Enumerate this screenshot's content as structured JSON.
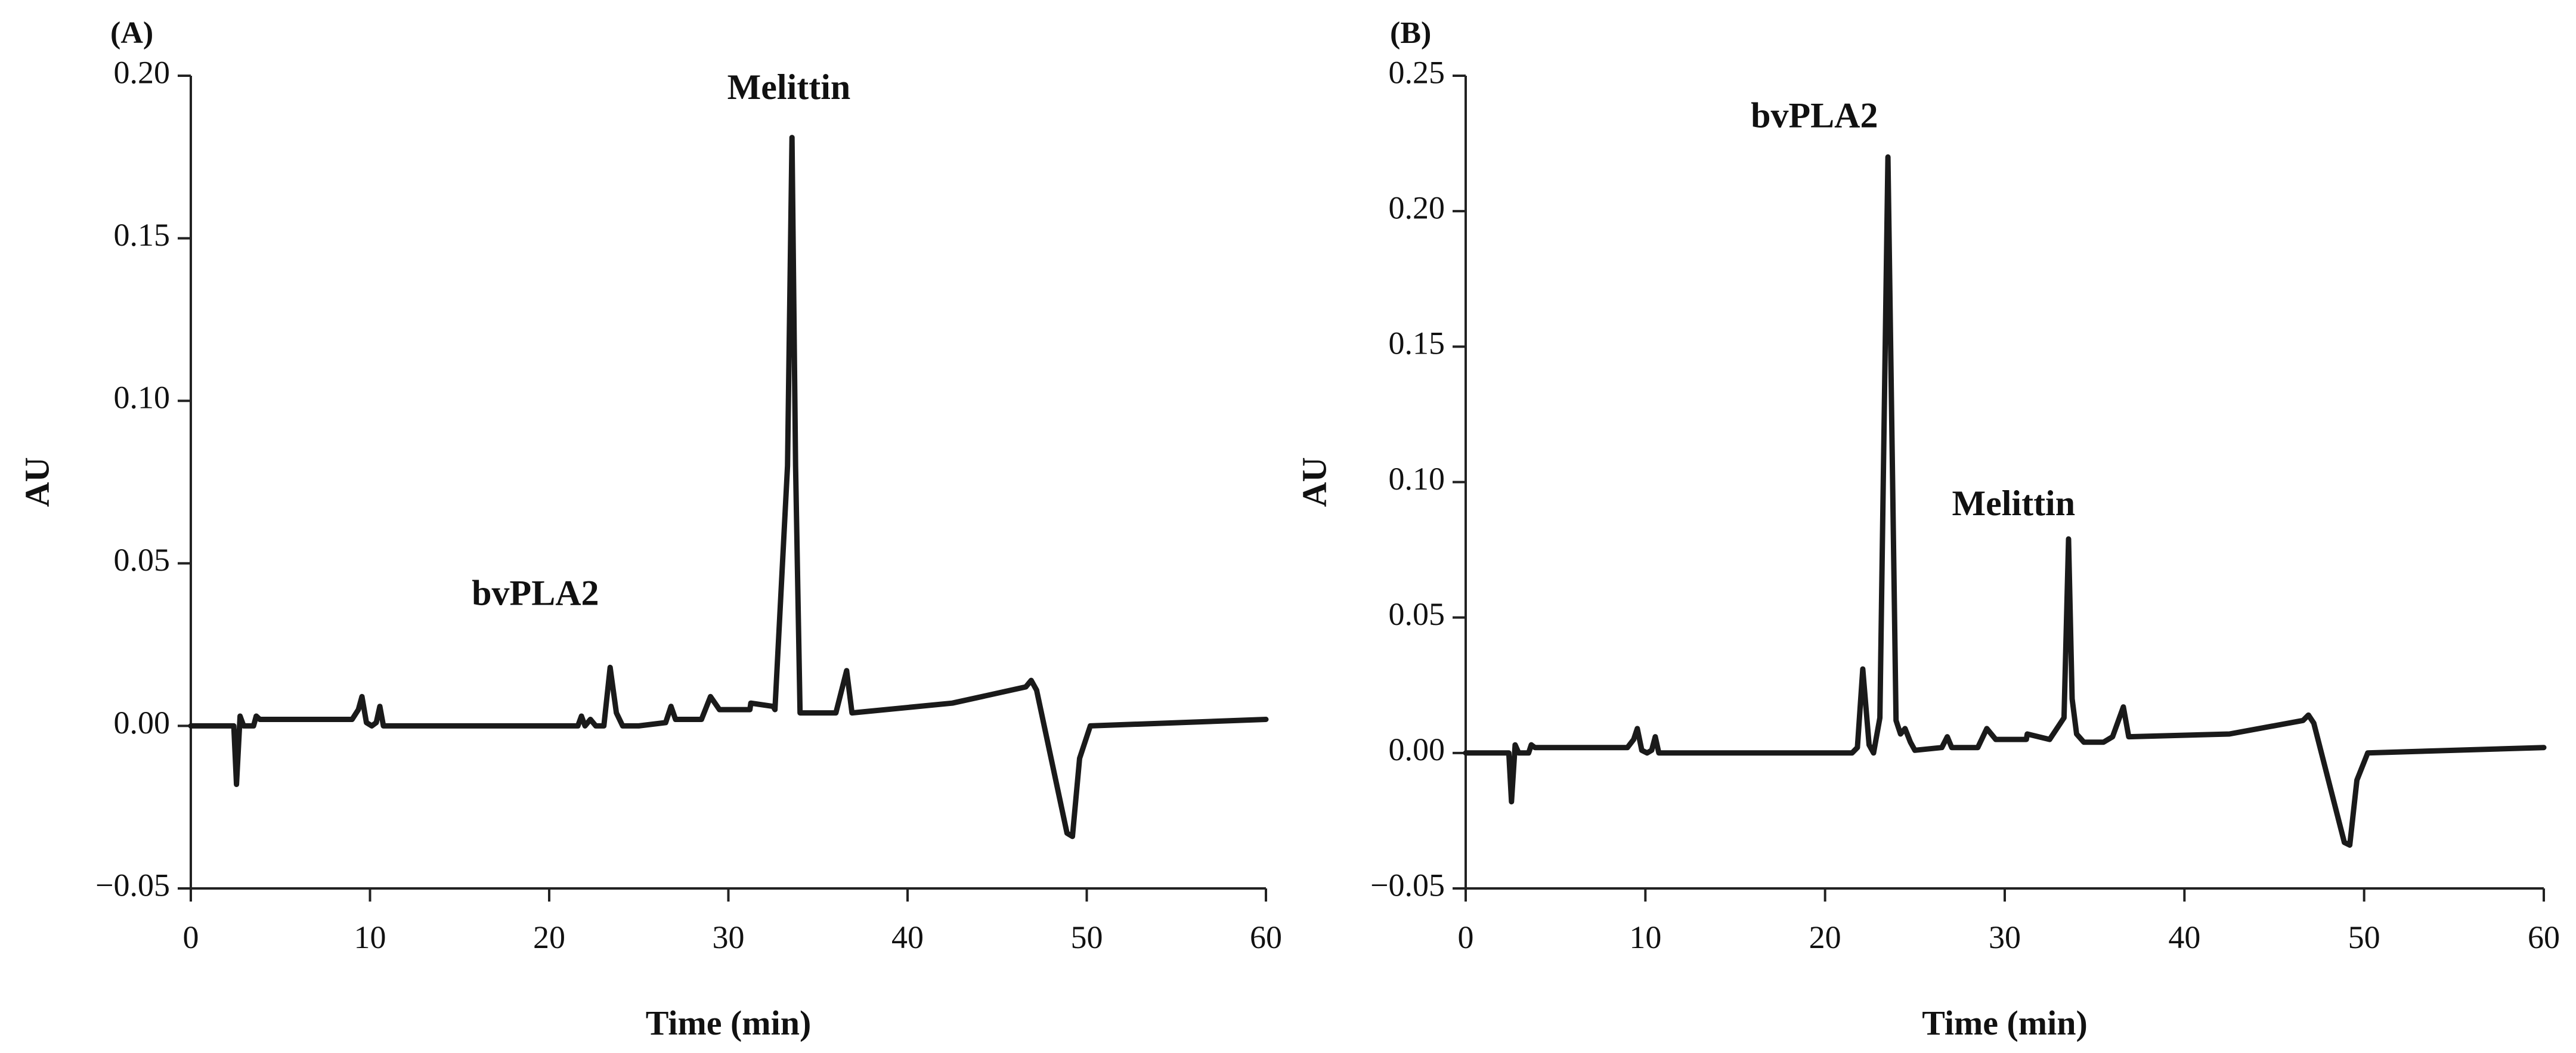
{
  "chart_data": [
    {
      "type": "line",
      "panel_label": "(A)",
      "xlabel": "Time (min)",
      "ylabel": "AU",
      "xlim": [
        0,
        60
      ],
      "ylim": [
        -0.05,
        0.2
      ],
      "x_ticks": [
        0,
        10,
        20,
        30,
        40,
        50,
        60
      ],
      "y_ticks": [
        -0.05,
        0.0,
        0.05,
        0.1,
        0.15,
        0.2
      ],
      "x_tick_labels": [
        "0",
        "10",
        "20",
        "30",
        "40",
        "50",
        "60"
      ],
      "y_tick_labels": [
        "−0.05",
        "0.00",
        "0.05",
        "0.10",
        "0.15",
        "0.20"
      ],
      "grid": false,
      "annotations": [
        {
          "text": "Melittin",
          "x": 33.6,
          "y": 0.18
        },
        {
          "text": "bvPLA2",
          "x": 23.5,
          "y": 0.017
        }
      ],
      "series": [
        {
          "x": [
            0,
            2.4,
            2.55,
            2.75,
            2.95,
            3.1,
            3.5,
            3.65,
            3.85,
            9.0,
            9.35,
            9.55,
            9.8,
            10.1,
            10.35,
            10.55,
            10.75,
            12.0,
            21.6,
            21.8,
            22.0,
            22.3,
            22.6,
            23.05,
            23.4,
            23.75,
            24.1,
            25.0,
            26.5,
            26.8,
            27.05,
            27.3,
            28.5,
            29.0,
            29.5,
            31.2,
            31.25,
            32.5,
            32.6,
            33.3,
            33.55,
            33.75,
            34.0,
            34.4,
            35.2,
            35.5,
            36.0,
            36.6,
            36.9,
            42.5,
            46.6,
            46.9,
            47.2,
            48.9,
            49.2,
            49.6,
            50.2,
            60.0
          ],
          "y": [
            0.0,
            0.0,
            -0.018,
            0.003,
            0.0,
            0.0,
            0.0,
            0.003,
            0.002,
            0.002,
            0.005,
            0.009,
            0.001,
            0.0,
            0.001,
            0.006,
            0.0,
            0.0,
            0.0,
            0.003,
            0.0,
            0.002,
            0.0,
            0.0,
            0.018,
            0.004,
            0.0,
            0.0,
            0.001,
            0.006,
            0.002,
            0.002,
            0.002,
            0.009,
            0.005,
            0.005,
            0.007,
            0.006,
            0.005,
            0.08,
            0.181,
            0.08,
            0.004,
            0.004,
            0.004,
            0.004,
            0.004,
            0.017,
            0.004,
            0.007,
            0.012,
            0.014,
            0.011,
            -0.033,
            -0.034,
            -0.01,
            0.0,
            0.002
          ]
        }
      ]
    },
    {
      "type": "line",
      "panel_label": "(B)",
      "xlabel": "Time (min)",
      "ylabel": "AU",
      "xlim": [
        0,
        60
      ],
      "ylim": [
        -0.05,
        0.25
      ],
      "x_ticks": [
        0,
        10,
        20,
        30,
        40,
        50,
        60
      ],
      "y_ticks": [
        -0.05,
        0.0,
        0.05,
        0.1,
        0.15,
        0.2,
        0.25
      ],
      "x_tick_labels": [
        "0",
        "10",
        "20",
        "30",
        "40",
        "50",
        "60"
      ],
      "y_tick_labels": [
        "−0.05",
        "0.00",
        "0.05",
        "0.10",
        "0.15",
        "0.20",
        "0.25"
      ],
      "grid": false,
      "annotations": [
        {
          "text": "bvPLA2",
          "x": 23.5,
          "y": 0.22
        },
        {
          "text": "Melittin",
          "x": 33.7,
          "y": 0.079
        }
      ],
      "series": [
        {
          "x": [
            0,
            2.4,
            2.55,
            2.75,
            2.95,
            3.1,
            3.5,
            3.65,
            3.85,
            9.0,
            9.35,
            9.55,
            9.8,
            10.1,
            10.35,
            10.55,
            10.75,
            12.0,
            21.5,
            21.8,
            22.1,
            22.45,
            22.7,
            23.05,
            23.5,
            23.95,
            24.2,
            24.45,
            24.75,
            25.0,
            26.5,
            26.8,
            27.05,
            27.3,
            28.5,
            29.0,
            29.5,
            31.2,
            31.25,
            32.5,
            33.3,
            33.55,
            33.75,
            34.0,
            34.4,
            35.2,
            35.5,
            36.0,
            36.6,
            36.9,
            42.5,
            46.6,
            46.9,
            47.2,
            48.9,
            49.2,
            49.6,
            50.2,
            60.0
          ],
          "y": [
            0.0,
            0.0,
            -0.018,
            0.003,
            0.0,
            0.0,
            0.0,
            0.003,
            0.002,
            0.002,
            0.005,
            0.009,
            0.001,
            0.0,
            0.001,
            0.006,
            0.0,
            0.0,
            0.0,
            0.002,
            0.031,
            0.003,
            0.0,
            0.013,
            0.22,
            0.012,
            0.007,
            0.009,
            0.004,
            0.001,
            0.002,
            0.006,
            0.002,
            0.002,
            0.002,
            0.009,
            0.005,
            0.005,
            0.007,
            0.005,
            0.013,
            0.079,
            0.02,
            0.007,
            0.004,
            0.004,
            0.004,
            0.006,
            0.017,
            0.006,
            0.007,
            0.012,
            0.014,
            0.011,
            -0.033,
            -0.034,
            -0.01,
            0.0,
            0.002
          ]
        }
      ]
    }
  ]
}
